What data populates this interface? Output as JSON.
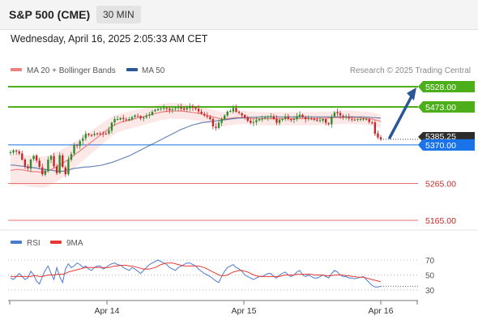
{
  "header": {
    "title": "S&P 500 (CME)",
    "timeframe": "30 MIN",
    "timestamp": "Wednesday, April 16, 2025 2:05:33 AM CET"
  },
  "legend": {
    "bollinger": "MA 20 + Bollinger Bands",
    "ma50": "MA 50",
    "copyright": "Research © 2025 Trading Central"
  },
  "colors": {
    "up": "#2e8b2e",
    "down": "#c62828",
    "bollinger": "#f08080",
    "band_fill": "#fde4e4",
    "ma50": "#2b5797",
    "resistance": "#4caf1a",
    "support": "#e57373",
    "pivot": "#1a73e8",
    "rsi": "#4a7bd0",
    "rsi_ma": "#e53935"
  },
  "chart_data": [
    {
      "type": "candlestick",
      "ylim": [
        5130,
        5560
      ],
      "x_ticks": [
        "Apr 14",
        "Apr 15",
        "Apr 16"
      ],
      "price_tag": "5385.25",
      "levels": [
        {
          "value": 5528,
          "label": "5528.00",
          "kind": "resistance"
        },
        {
          "value": 5473,
          "label": "5473.00",
          "kind": "resistance"
        },
        {
          "value": 5370,
          "label": "5370.00",
          "kind": "pivot"
        },
        {
          "value": 5265,
          "label": "5265.00",
          "kind": "support"
        },
        {
          "value": 5165,
          "label": "5165.00",
          "kind": "support"
        }
      ],
      "close": [
        5350,
        5355,
        5352,
        5346,
        5330,
        5312,
        5306,
        5330,
        5340,
        5327,
        5310,
        5290,
        5300,
        5330,
        5340,
        5312,
        5293,
        5342,
        5310,
        5290,
        5330,
        5345,
        5370,
        5368,
        5380,
        5387,
        5400,
        5397,
        5396,
        5400,
        5400,
        5400,
        5400,
        5400,
        5410,
        5430,
        5440,
        5440,
        5443,
        5440,
        5437,
        5440,
        5445,
        5450,
        5448,
        5442,
        5445,
        5448,
        5452,
        5460,
        5465,
        5467,
        5469,
        5470,
        5468,
        5465,
        5467,
        5470,
        5472,
        5468,
        5465,
        5470,
        5475,
        5471,
        5468,
        5461,
        5455,
        5450,
        5447,
        5440,
        5420,
        5416,
        5430,
        5440,
        5450,
        5460,
        5462,
        5470,
        5460,
        5457,
        5450,
        5445,
        5435,
        5430,
        5432,
        5437,
        5440,
        5442,
        5445,
        5447,
        5448,
        5440,
        5430,
        5438,
        5440,
        5447,
        5441,
        5437,
        5440,
        5448,
        5452,
        5445,
        5440,
        5443,
        5440,
        5438,
        5436,
        5437,
        5440,
        5430,
        5426,
        5446,
        5458,
        5456,
        5450,
        5445,
        5446,
        5442,
        5440,
        5438,
        5440,
        5440,
        5440,
        5440,
        5432,
        5430,
        5400,
        5390,
        5385
      ],
      "ma20": [
        5300,
        5302,
        5303,
        5303,
        5302,
        5301,
        5299,
        5298,
        5297,
        5297,
        5296,
        5296,
        5296,
        5300,
        5303,
        5307,
        5311,
        5315,
        5320,
        5325,
        5330,
        5336,
        5342,
        5348,
        5354,
        5360,
        5366,
        5372,
        5378,
        5384,
        5390,
        5396,
        5402,
        5408,
        5414,
        5420,
        5424,
        5428,
        5431,
        5433,
        5435,
        5437,
        5439,
        5441,
        5443,
        5445,
        5447,
        5449,
        5451,
        5453,
        5455,
        5457,
        5459,
        5460,
        5461,
        5462,
        5462,
        5462,
        5462,
        5462,
        5461,
        5460,
        5459,
        5458,
        5457,
        5456,
        5454,
        5452,
        5450,
        5448,
        5446,
        5444,
        5442,
        5440,
        5440,
        5441,
        5442,
        5443,
        5444,
        5444,
        5444,
        5444,
        5443,
        5442,
        5441,
        5441,
        5441,
        5441,
        5441,
        5441,
        5441,
        5441,
        5441,
        5441,
        5441,
        5441,
        5441,
        5441,
        5441,
        5441,
        5441,
        5441,
        5441,
        5441,
        5441,
        5441,
        5441,
        5442,
        5442,
        5442,
        5443,
        5443,
        5444,
        5444,
        5444,
        5445,
        5445,
        5445,
        5445,
        5444,
        5444,
        5443,
        5442,
        5442,
        5441,
        5440,
        5438,
        5436,
        5434
      ],
      "ma50": [
        5315,
        5315,
        5314,
        5313,
        5312,
        5311,
        5310,
        5309,
        5308,
        5307,
        5305,
        5304,
        5303,
        5302,
        5301,
        5300,
        5299,
        5298,
        5298,
        5300,
        5302,
        5304,
        5306,
        5307,
        5308,
        5309,
        5310,
        5310,
        5311,
        5312,
        5313,
        5314,
        5316,
        5318,
        5320,
        5322,
        5325,
        5328,
        5331,
        5334,
        5337,
        5340,
        5344,
        5348,
        5352,
        5356,
        5360,
        5364,
        5368,
        5372,
        5376,
        5380,
        5384,
        5388,
        5392,
        5396,
        5400,
        5404,
        5408,
        5412,
        5415,
        5418,
        5421,
        5424,
        5426,
        5428,
        5430,
        5431,
        5432,
        5433,
        5434,
        5435,
        5436,
        5437,
        5438,
        5439,
        5440,
        5441,
        5442,
        5443,
        5443,
        5444,
        5444,
        5445,
        5445,
        5445,
        5446,
        5446,
        5446,
        5446,
        5446,
        5446,
        5446,
        5446,
        5446,
        5446,
        5446,
        5446,
        5446,
        5446,
        5446,
        5446,
        5446,
        5446,
        5446,
        5446,
        5446,
        5446,
        5446,
        5446,
        5446,
        5446,
        5446,
        5446,
        5446,
        5446,
        5446,
        5446,
        5446,
        5446,
        5446,
        5446,
        5446,
        5445,
        5445,
        5444,
        5444,
        5443,
        5443
      ],
      "projection": [
        5385,
        5528
      ]
    },
    {
      "type": "line",
      "title": "RSI",
      "series_names": [
        "RSI",
        "9MA"
      ],
      "ylim": [
        25,
        75
      ],
      "y_ticks": [
        70,
        50,
        30
      ],
      "rsi": [
        46,
        44,
        48,
        52,
        48,
        44,
        46,
        55,
        50,
        42,
        38,
        48,
        56,
        62,
        52,
        44,
        60,
        48,
        40,
        58,
        65,
        60,
        62,
        66,
        64,
        60,
        62,
        58,
        56,
        60,
        62,
        62,
        58,
        60,
        63,
        65,
        66,
        64,
        63,
        60,
        58,
        56,
        60,
        58,
        55,
        52,
        56,
        60,
        64,
        66,
        68,
        70,
        68,
        66,
        64,
        60,
        58,
        56,
        60,
        62,
        64,
        66,
        66,
        64,
        62,
        58,
        55,
        52,
        50,
        48,
        45,
        42,
        40,
        48,
        55,
        60,
        62,
        64,
        60,
        58,
        55,
        50,
        48,
        46,
        44,
        46,
        48,
        48,
        50,
        52,
        52,
        48,
        46,
        50,
        52,
        54,
        50,
        48,
        50,
        54,
        56,
        50,
        48,
        50,
        48,
        46,
        46,
        48,
        50,
        48,
        46,
        52,
        56,
        54,
        50,
        48,
        48,
        46,
        46,
        45,
        46,
        47,
        48,
        44,
        40,
        36,
        34,
        34,
        35
      ],
      "rsi_ma": [
        48,
        48,
        48,
        48,
        48,
        48,
        48,
        48,
        49,
        49,
        48,
        48,
        49,
        50,
        50,
        50,
        51,
        51,
        51,
        52,
        54,
        55,
        56,
        57,
        58,
        59,
        60,
        60,
        60,
        60,
        60,
        60,
        60,
        60,
        60,
        61,
        62,
        62,
        63,
        63,
        63,
        62,
        62,
        61,
        60,
        59,
        58,
        58,
        58,
        59,
        60,
        62,
        64,
        65,
        66,
        66,
        66,
        65,
        64,
        63,
        62,
        62,
        62,
        62,
        62,
        62,
        61,
        60,
        58,
        56,
        54,
        52,
        50,
        49,
        49,
        50,
        52,
        54,
        55,
        56,
        56,
        55,
        54,
        52,
        50,
        49,
        48,
        48,
        48,
        48,
        48,
        48,
        48,
        48,
        49,
        50,
        50,
        50,
        50,
        51,
        51,
        51,
        51,
        51,
        51,
        50,
        50,
        50,
        50,
        49,
        49,
        49,
        50,
        50,
        50,
        50,
        49,
        49,
        48,
        48,
        47,
        47,
        47,
        46,
        45,
        44,
        43,
        42,
        41
      ]
    }
  ]
}
